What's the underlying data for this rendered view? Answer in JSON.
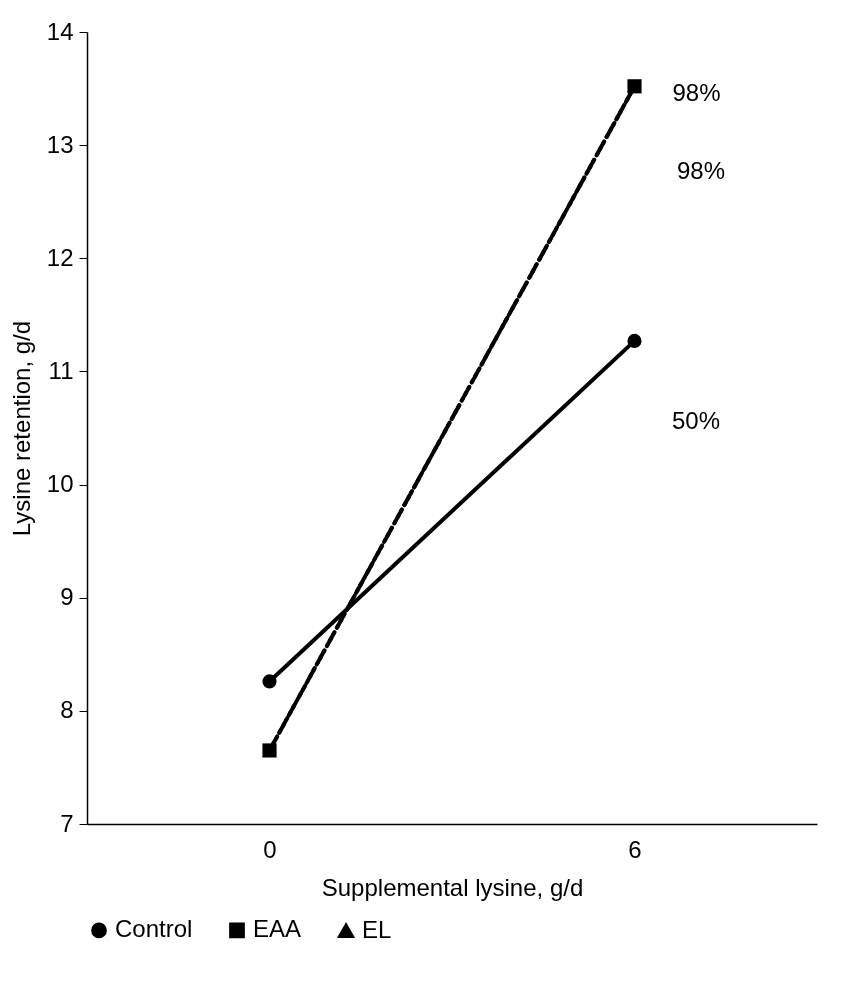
{
  "chart_data": {
    "type": "line",
    "xlabel": "Supplemental lysine, g/d",
    "ylabel": "Lysine retention, g/d",
    "categories": [
      "0",
      "6"
    ],
    "series": [
      {
        "name": "Control",
        "color": "#000000",
        "marker": "circle",
        "line_style": "solid",
        "values": [
          8.26,
          11.27
        ]
      },
      {
        "name": "EAA",
        "color": "#000000",
        "marker": "square",
        "line_style": "dotted",
        "values": [
          7.65,
          13.52
        ]
      },
      {
        "name": "EL",
        "color": "#000000",
        "marker": "triangle",
        "line_style": "dashed",
        "values": [
          7.65,
          13.52
        ]
      }
    ],
    "ylim": [
      7,
      14
    ],
    "yticks": [
      7,
      8,
      9,
      10,
      11,
      12,
      13,
      14
    ],
    "grid": false,
    "legend": "bottom",
    "annotations": [
      {
        "text": "98%",
        "x": "6",
        "y": 13.45
      },
      "98%",
      "50%"
    ]
  }
}
